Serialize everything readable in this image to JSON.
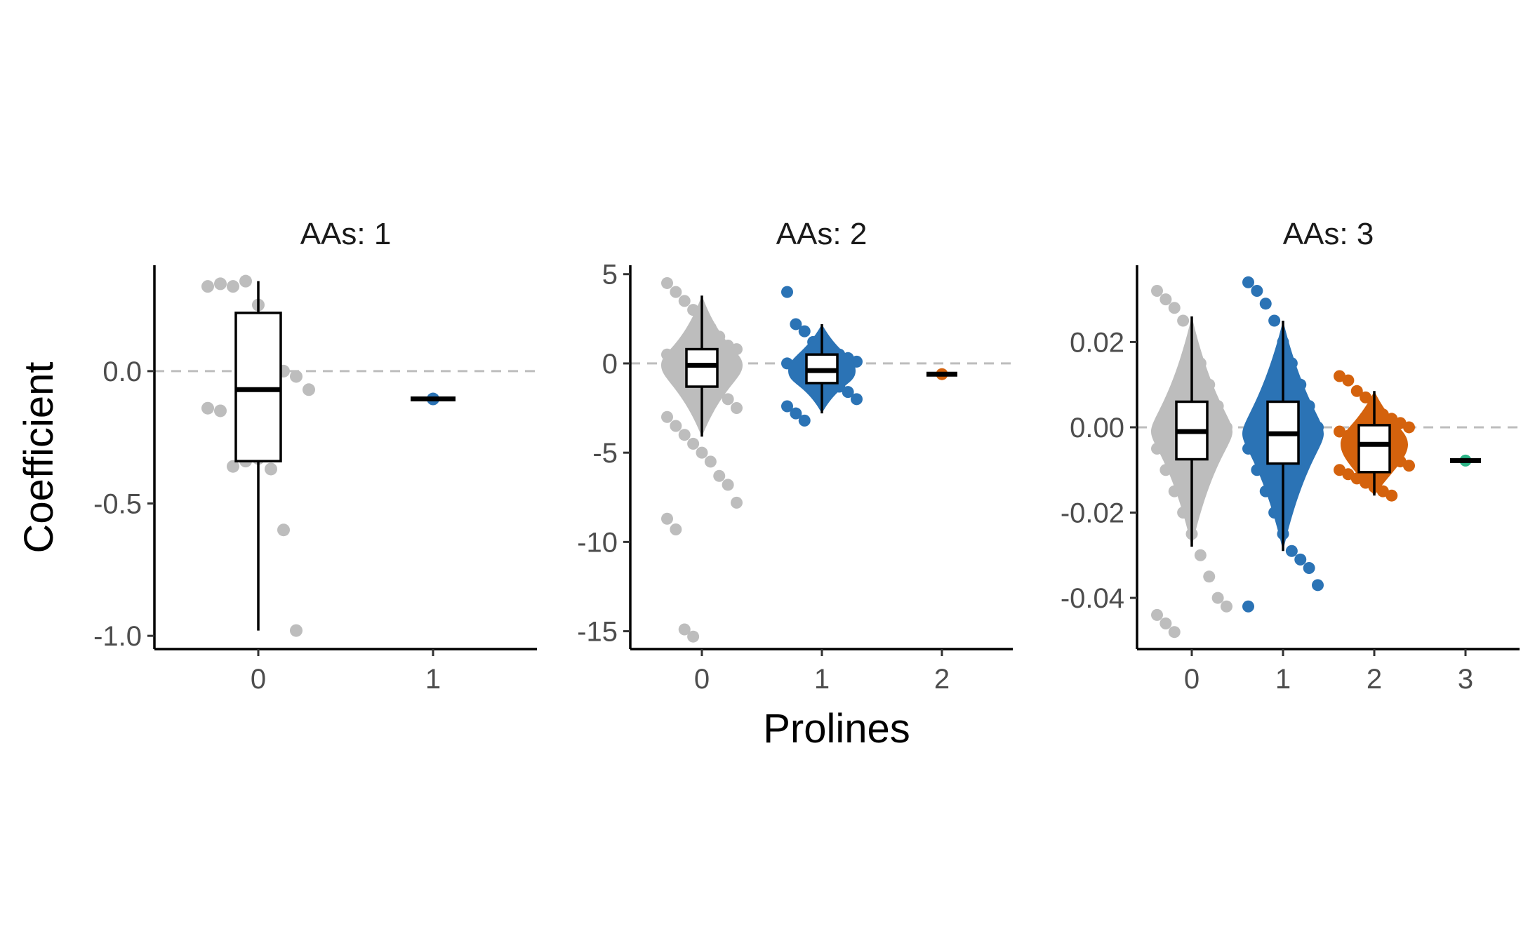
{
  "figure": {
    "xlabel": "Prolines",
    "ylabel": "Coefficient"
  },
  "colors": {
    "0": "#bdbdbd",
    "1": "#2b73b5",
    "2": "#d4620d",
    "3": "#2db587",
    "ref_line": "#bdbdbd"
  },
  "chart_data": [
    {
      "type": "box-dot",
      "title": "AAs: 1",
      "ylim": [
        -1.05,
        0.4
      ],
      "yticks": [
        -1.0,
        -0.5,
        0.0
      ],
      "ytick_labels": [
        "-1.0",
        "-0.5",
        "0.0"
      ],
      "categories": [
        "0",
        "1"
      ],
      "ref_line": 0.0,
      "boxes": [
        {
          "category": "0",
          "min": -0.98,
          "q1": -0.34,
          "median": -0.07,
          "q3": 0.22,
          "max": 0.34
        },
        {
          "category": "1",
          "min": -0.105,
          "q1": -0.105,
          "median": -0.105,
          "q3": -0.105,
          "max": -0.105
        }
      ],
      "points": [
        {
          "category": "0",
          "values": [
            0.32,
            0.33,
            0.32,
            0.34,
            0.25,
            0.0,
            0.0,
            -0.02,
            -0.07,
            -0.14,
            -0.15,
            -0.36,
            -0.34,
            -0.33,
            -0.37,
            -0.6,
            -0.98
          ]
        },
        {
          "category": "1",
          "values": [
            -0.105
          ]
        }
      ]
    },
    {
      "type": "box-dot",
      "title": "AAs: 2",
      "ylim": [
        -16,
        5.5
      ],
      "yticks": [
        -15,
        -10,
        -5,
        0,
        5
      ],
      "ytick_labels": [
        "-15",
        "-10",
        "-5",
        "0",
        "5"
      ],
      "categories": [
        "0",
        "1",
        "2"
      ],
      "ref_line": 0,
      "boxes": [
        {
          "category": "0",
          "min": -4.1,
          "q1": -1.3,
          "median": -0.1,
          "q3": 0.8,
          "max": 3.8
        },
        {
          "category": "1",
          "min": -2.8,
          "q1": -1.1,
          "median": -0.4,
          "q3": 0.5,
          "max": 2.2
        },
        {
          "category": "2",
          "min": -0.6,
          "q1": -0.6,
          "median": -0.6,
          "q3": -0.6,
          "max": -0.6
        }
      ],
      "points": [
        {
          "category": "0",
          "values": [
            4.5,
            4.0,
            3.5,
            3.0,
            2.5,
            2.0,
            1.5,
            1.0,
            0.8,
            0.5,
            0.2,
            0.0,
            -0.3,
            -0.6,
            -1.0,
            -1.5,
            -2.0,
            -2.5,
            -3.0,
            -3.5,
            -4.0,
            -4.5,
            -5.0,
            -5.5,
            -6.3,
            -6.8,
            -7.8,
            -8.7,
            -9.3,
            -14.9,
            -15.3
          ]
        },
        {
          "category": "1",
          "values": [
            4.0,
            2.2,
            1.8,
            1.2,
            0.8,
            0.6,
            0.5,
            0.3,
            0.1,
            0.0,
            -0.2,
            -0.4,
            -0.6,
            -0.8,
            -1.0,
            -1.3,
            -1.6,
            -2.0,
            -2.4,
            -2.8,
            -3.2
          ]
        },
        {
          "category": "2",
          "values": [
            -0.6
          ]
        }
      ]
    },
    {
      "type": "box-dot",
      "title": "AAs: 3",
      "ylim": [
        -0.052,
        0.038
      ],
      "yticks": [
        -0.04,
        -0.02,
        0.0,
        0.02
      ],
      "ytick_labels": [
        "-0.04",
        "-0.02",
        "0.00",
        "0.02"
      ],
      "categories": [
        "0",
        "1",
        "2",
        "3"
      ],
      "ref_line": 0.0,
      "boxes": [
        {
          "category": "0",
          "min": -0.028,
          "q1": -0.0075,
          "median": -0.001,
          "q3": 0.006,
          "max": 0.026
        },
        {
          "category": "1",
          "min": -0.029,
          "q1": -0.0085,
          "median": -0.0015,
          "q3": 0.006,
          "max": 0.025
        },
        {
          "category": "2",
          "min": -0.016,
          "q1": -0.0105,
          "median": -0.004,
          "q3": 0.0005,
          "max": 0.0085
        },
        {
          "category": "3",
          "min": -0.0078,
          "q1": -0.0078,
          "median": -0.0078,
          "q3": -0.0078,
          "max": -0.0078
        }
      ],
      "points": [
        {
          "category": "0",
          "values": [
            0.032,
            0.03,
            0.028,
            0.025,
            0.02,
            0.015,
            0.01,
            0.005,
            0.0,
            -0.005,
            -0.01,
            -0.015,
            -0.02,
            -0.025,
            -0.03,
            -0.035,
            -0.04,
            -0.042,
            -0.044,
            -0.046,
            -0.048
          ]
        },
        {
          "category": "1",
          "values": [
            0.034,
            0.032,
            0.029,
            0.025,
            0.02,
            0.015,
            0.01,
            0.005,
            0.0,
            -0.005,
            -0.01,
            -0.015,
            -0.02,
            -0.025,
            -0.029,
            -0.031,
            -0.033,
            -0.037,
            -0.042
          ]
        },
        {
          "category": "2",
          "values": [
            0.012,
            0.011,
            0.0085,
            0.007,
            0.005,
            0.003,
            0.002,
            0.001,
            0.0,
            -0.001,
            -0.002,
            -0.003,
            -0.004,
            -0.005,
            -0.006,
            -0.007,
            -0.008,
            -0.009,
            -0.01,
            -0.011,
            -0.012,
            -0.013,
            -0.014,
            -0.015,
            -0.016
          ]
        },
        {
          "category": "3",
          "values": [
            -0.0078
          ]
        }
      ]
    }
  ]
}
